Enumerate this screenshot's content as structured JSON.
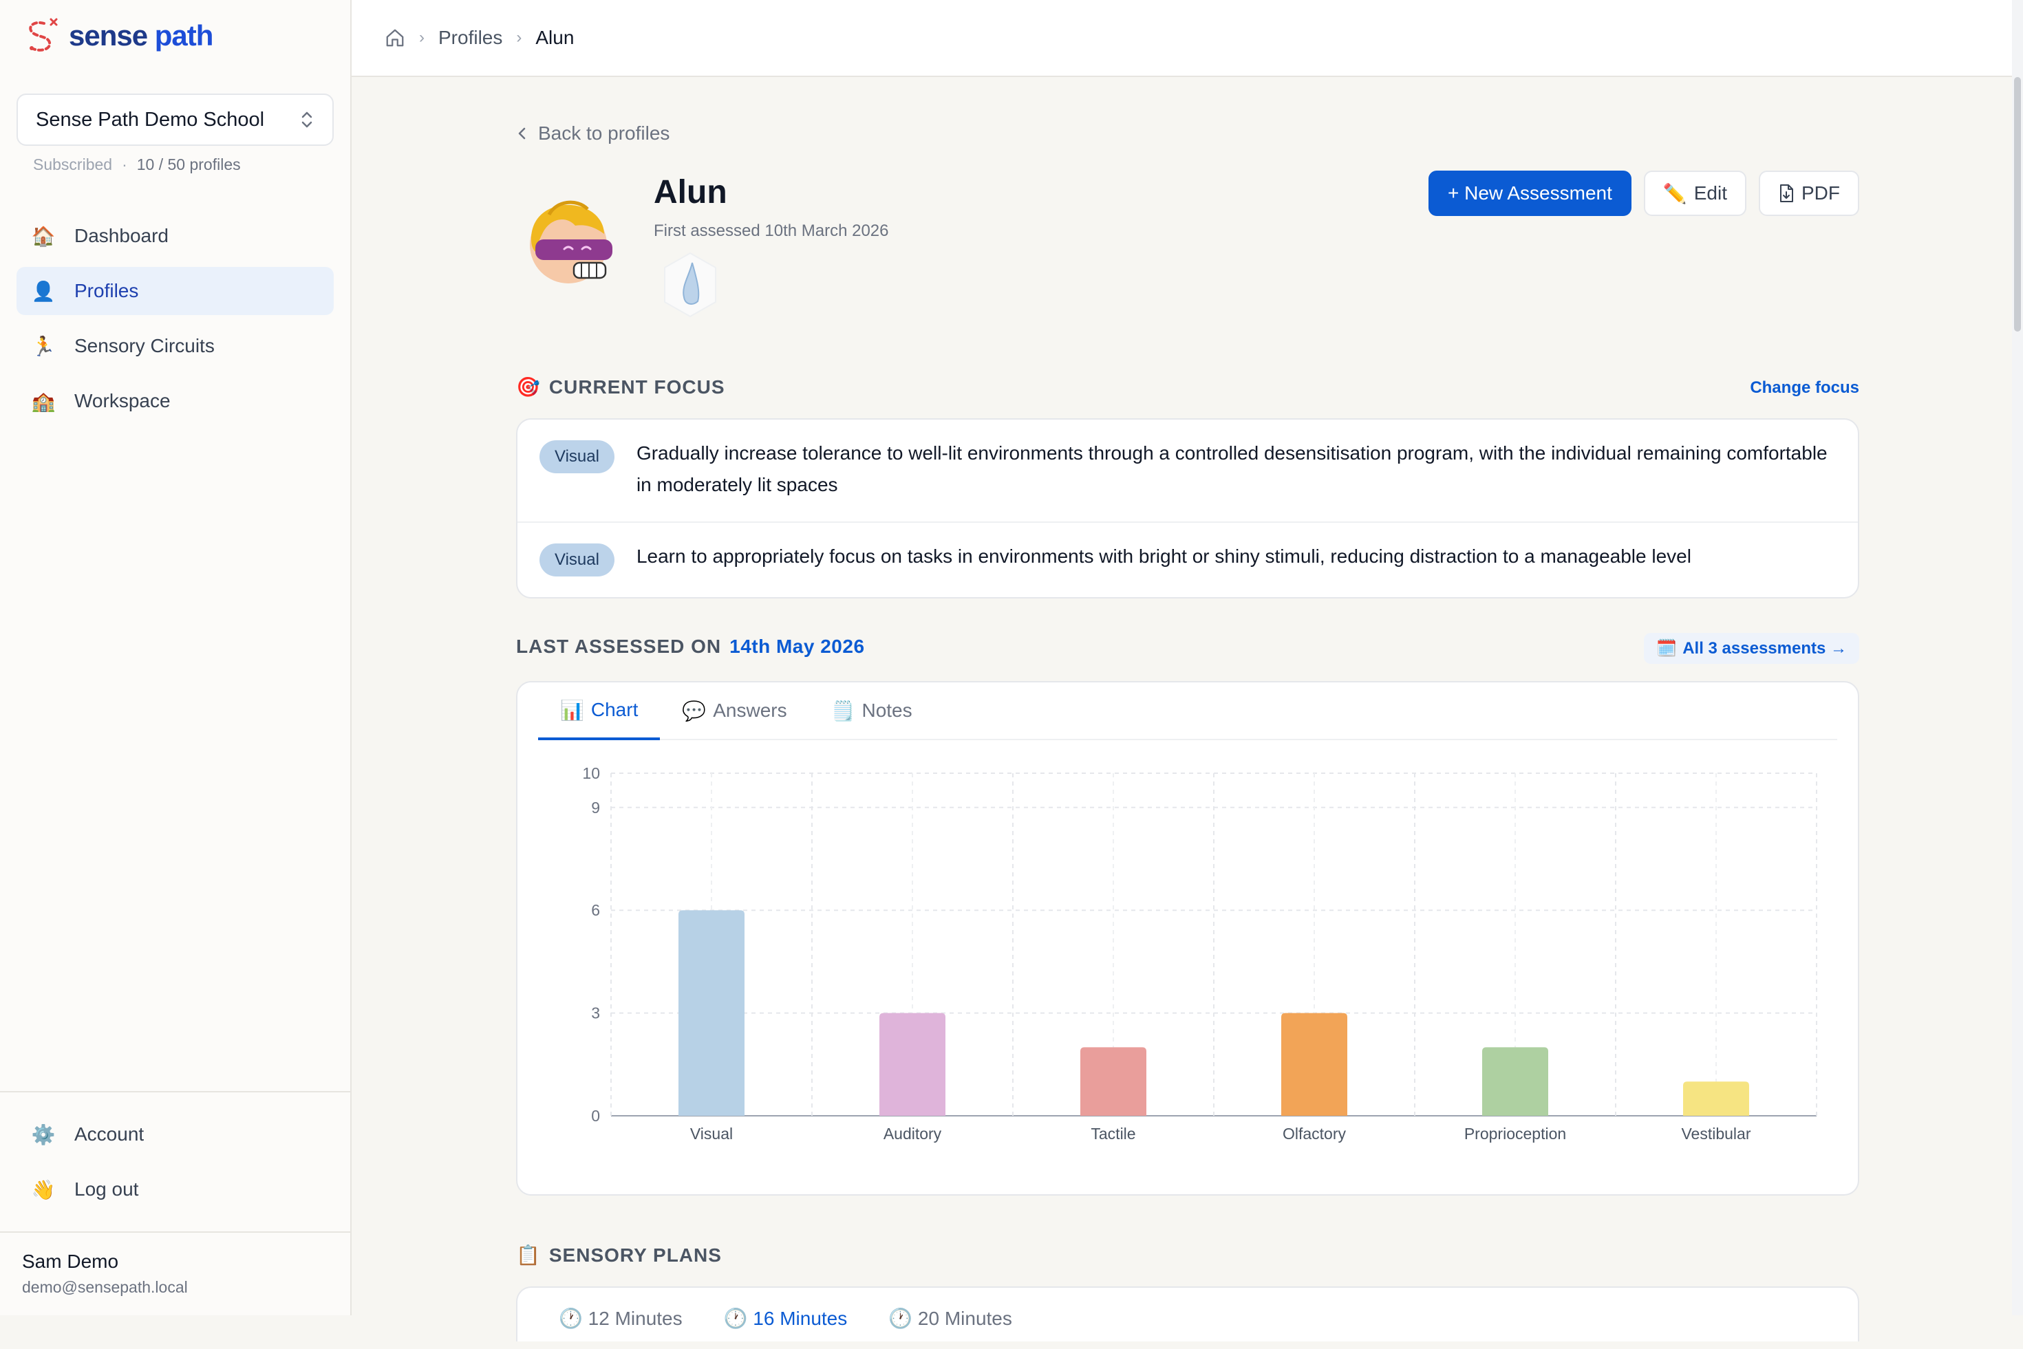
{
  "app": {
    "name_part1": "sense",
    "name_part2": "path",
    "brand_color": "#1e3a8a",
    "accent_color": "#0b5bd3"
  },
  "sidebar": {
    "school": {
      "name": "Sense Path Demo School",
      "status": "Subscribed",
      "profiles": "10 / 50 profiles"
    },
    "nav": [
      {
        "label": "Dashboard",
        "icon": "house-emoji",
        "glyph": "🏠"
      },
      {
        "label": "Profiles",
        "icon": "person-emoji",
        "glyph": "👤"
      },
      {
        "label": "Sensory Circuits",
        "icon": "runner-emoji",
        "glyph": "🏃"
      },
      {
        "label": "Workspace",
        "icon": "school-emoji",
        "glyph": "🏫"
      }
    ],
    "bottom_nav": [
      {
        "label": "Account",
        "icon": "gear-emoji",
        "glyph": "⚙️"
      },
      {
        "label": "Log out",
        "icon": "wave-emoji",
        "glyph": "👋"
      }
    ],
    "user": {
      "name": "Sam Demo",
      "email": "demo@sensepath.local"
    }
  },
  "breadcrumb": {
    "items": [
      "Profiles",
      "Alun"
    ]
  },
  "profile": {
    "back_label": "Back to profiles",
    "name": "Alun",
    "first_assessed": "First assessed 10th March 2026",
    "actions": {
      "new_assessment": "+ New Assessment",
      "edit": "Edit",
      "pdf": "PDF"
    }
  },
  "focus": {
    "heading": "CURRENT FOCUS",
    "change_label": "Change focus",
    "items": [
      {
        "tag": "Visual",
        "text": "Gradually increase tolerance to well-lit environments through a controlled desensitisation program, with the individual remaining comfortable in moderately lit spaces"
      },
      {
        "tag": "Visual",
        "text": "Learn to appropriately focus on tasks in environments with bright or shiny stimuli, reducing distraction to a manageable level"
      }
    ]
  },
  "assessment": {
    "heading_prefix": "LAST ASSESSED ON",
    "date": "14th May 2026",
    "all_label": "All 3 assessments →",
    "tabs": [
      {
        "label": "Chart",
        "icon": "bar-chart-emoji",
        "glyph": "📊"
      },
      {
        "label": "Answers",
        "icon": "speech-bubble-emoji",
        "glyph": "💬"
      },
      {
        "label": "Notes",
        "icon": "notepad-emoji",
        "glyph": "🗒️"
      }
    ]
  },
  "chart_data": {
    "type": "bar",
    "categories": [
      "Visual",
      "Auditory",
      "Tactile",
      "Olfactory",
      "Proprioception",
      "Vestibular"
    ],
    "values": [
      6,
      3,
      2,
      3,
      2,
      1
    ],
    "colors": [
      "#b7d1e6",
      "#dfb4da",
      "#e99e9b",
      "#f2a457",
      "#aed0a1",
      "#f6e482"
    ],
    "y_ticks": [
      0,
      3,
      6,
      9,
      10
    ],
    "ylim": [
      0,
      10
    ],
    "grid": true
  },
  "plans": {
    "heading": "SENSORY PLANS",
    "tabs": [
      "12 Minutes",
      "16 Minutes",
      "20 Minutes"
    ]
  }
}
